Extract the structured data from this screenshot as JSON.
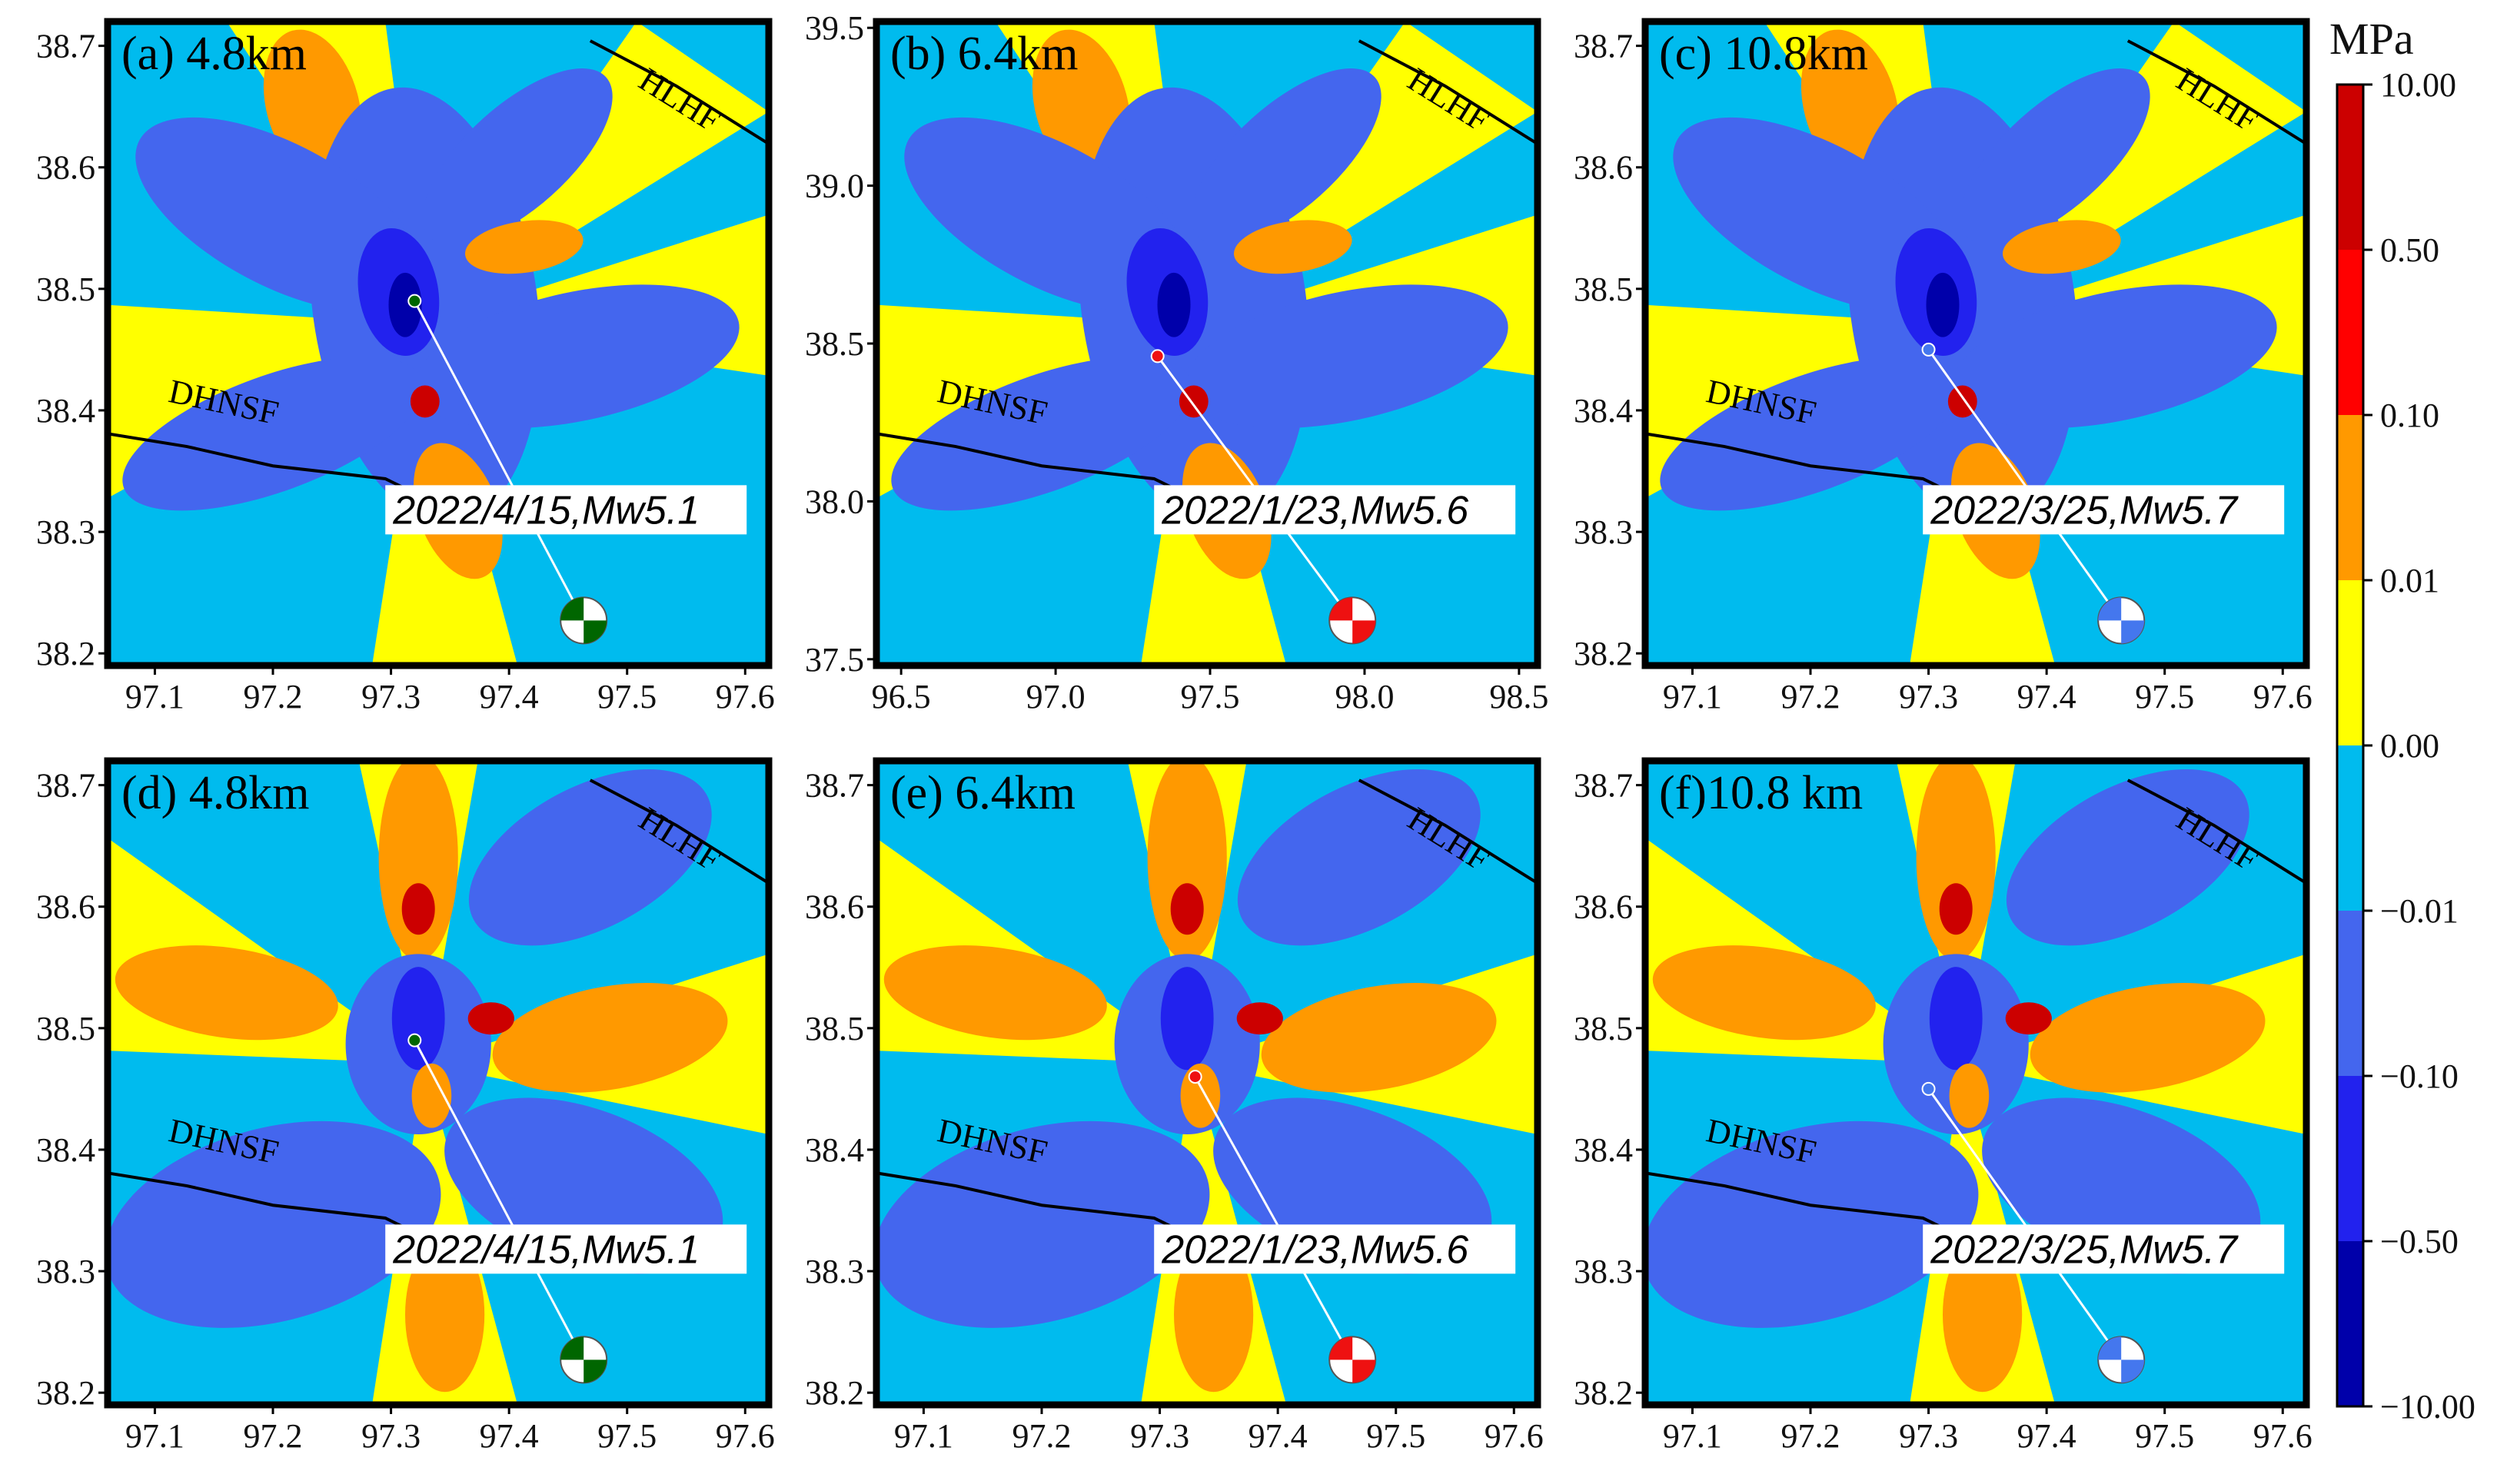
{
  "colorbar": {
    "unit": "MPa",
    "levels": [
      "10.00",
      "0.50",
      "0.10",
      "0.01",
      "0.00",
      "−0.01",
      "−0.10",
      "−0.50",
      "−10.00"
    ],
    "colors": [
      "#cc0000",
      "#ff0000",
      "#ff9900",
      "#ffff00",
      "#00bbee",
      "#4466ee",
      "#2222ee",
      "#0000aa"
    ]
  },
  "fault_labels": {
    "hlhf": "HLHF",
    "dhnsf": "DHNSF"
  },
  "beachball_colors": {
    "a": "#006600",
    "b": "#ee1111",
    "c": "#4477ee"
  },
  "chart_data": [
    {
      "type": "heatmap",
      "panel": "(a) 4.8km",
      "title": "(a) 4.8km",
      "depth_km": 4.8,
      "x_ticks": [
        "97.1",
        "97.2",
        "97.3",
        "97.4",
        "97.5",
        "97.6"
      ],
      "y_ticks": [
        "38.2",
        "38.3",
        "38.4",
        "38.5",
        "38.6",
        "38.7"
      ],
      "xlim": [
        97.06,
        97.62
      ],
      "ylim": [
        38.19,
        38.72
      ],
      "event": {
        "label": "2022/4/15,Mw5.1",
        "lon": 97.32,
        "lat": 38.49,
        "color": "#006600"
      }
    },
    {
      "type": "heatmap",
      "panel": "(b) 6.4km",
      "title": "(b) 6.4km",
      "depth_km": 6.4,
      "x_ticks": [
        "96.5",
        "97.0",
        "97.5",
        "98.0",
        "98.5"
      ],
      "y_ticks": [
        "37.5",
        "38.0",
        "38.5",
        "39.0",
        "39.5"
      ],
      "xlim": [
        96.42,
        98.56
      ],
      "ylim": [
        37.48,
        39.52
      ],
      "event": {
        "label": "2022/1/23,Mw5.6",
        "lon": 97.33,
        "lat": 38.46,
        "color": "#ee1111"
      }
    },
    {
      "type": "heatmap",
      "panel": "(c) 10.8km",
      "title": "(c) 10.8km",
      "depth_km": 10.8,
      "x_ticks": [
        "97.1",
        "97.2",
        "97.3",
        "97.4",
        "97.5",
        "97.6"
      ],
      "y_ticks": [
        "38.2",
        "38.3",
        "38.4",
        "38.5",
        "38.6",
        "38.7"
      ],
      "xlim": [
        97.06,
        97.62
      ],
      "ylim": [
        38.19,
        38.72
      ],
      "event": {
        "label": "2022/3/25,Mw5.7",
        "lon": 97.3,
        "lat": 38.45,
        "color": "#4477ee"
      }
    },
    {
      "type": "heatmap",
      "panel": "(d) 4.8km",
      "title": "(d) 4.8km",
      "depth_km": 4.8,
      "x_ticks": [
        "97.1",
        "97.2",
        "97.3",
        "97.4",
        "97.5",
        "97.6"
      ],
      "y_ticks": [
        "38.2",
        "38.3",
        "38.4",
        "38.5",
        "38.6",
        "38.7"
      ],
      "xlim": [
        97.06,
        97.62
      ],
      "ylim": [
        38.19,
        38.72
      ],
      "event": {
        "label": "2022/4/15,Mw5.1",
        "lon": 97.32,
        "lat": 38.49,
        "color": "#006600"
      }
    },
    {
      "type": "heatmap",
      "panel": "(e) 6.4km",
      "title": "(e) 6.4km",
      "depth_km": 6.4,
      "x_ticks": [
        "97.1",
        "97.2",
        "97.3",
        "97.4",
        "97.5",
        "97.6"
      ],
      "y_ticks": [
        "38.2",
        "38.3",
        "38.4",
        "38.5",
        "38.6",
        "38.7"
      ],
      "xlim": [
        97.06,
        97.62
      ],
      "ylim": [
        38.19,
        38.72
      ],
      "event": {
        "label": "2022/1/23,Mw5.6",
        "lon": 97.33,
        "lat": 38.46,
        "color": "#ee1111"
      }
    },
    {
      "type": "heatmap",
      "panel": "(f)10.8 km",
      "title": "(f)10.8 km",
      "depth_km": 10.8,
      "x_ticks": [
        "97.1",
        "97.2",
        "97.3",
        "97.4",
        "97.5",
        "97.6"
      ],
      "y_ticks": [
        "38.2",
        "38.3",
        "38.4",
        "38.5",
        "38.6",
        "38.7"
      ],
      "xlim": [
        97.06,
        97.62
      ],
      "ylim": [
        38.19,
        38.72
      ],
      "event": {
        "label": "2022/3/25,Mw5.7",
        "lon": 97.3,
        "lat": 38.45,
        "color": "#4477ee"
      }
    }
  ]
}
